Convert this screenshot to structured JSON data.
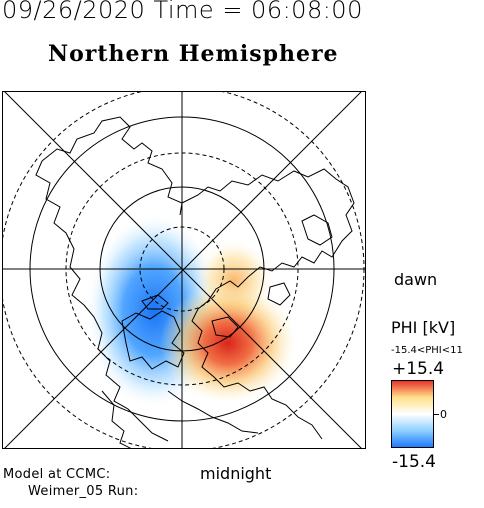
{
  "header": {
    "datetime": "09/26/2020 Time = 06:08:00",
    "title": "Northern Hemisphere"
  },
  "map": {
    "dawn_label": "dawn",
    "midnight_label": "midnight",
    "projection": "polar stereographic",
    "hemisphere": "north"
  },
  "colorbar": {
    "title": "PHI [kV]",
    "range_text": "-15.4<PHI<11",
    "max_label": "+15.4",
    "min_label": "-15.4",
    "zero_label": "0",
    "colors": [
      "#1e7bff",
      "#8fd0ff",
      "#ffffff",
      "#ffe08a",
      "#e8342a"
    ]
  },
  "footer": {
    "line1": "Model at CCMC:",
    "line2": "Weimer_05 Run:"
  }
}
